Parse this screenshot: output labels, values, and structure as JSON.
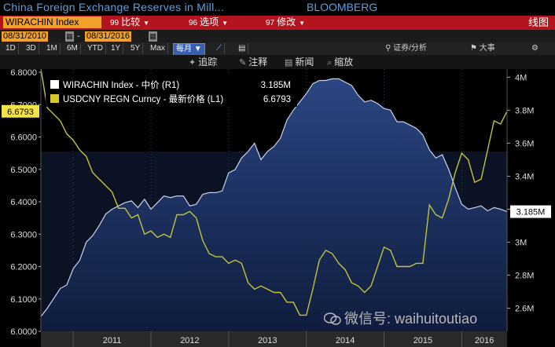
{
  "header": {
    "title": "China Foreign Exchange Reserves in Mill...",
    "source": "BLOOMBERG",
    "ticker": "WIRACHIN Index",
    "menu": [
      {
        "num": "99",
        "label": "比较"
      },
      {
        "num": "96",
        "label": "选项"
      },
      {
        "num": "97",
        "label": "修改"
      }
    ],
    "line_graph_label": "线图"
  },
  "dates": {
    "start": "08/31/2010",
    "end": "08/31/2016"
  },
  "ranges": [
    "1D",
    "3D",
    "1M",
    "6M",
    "YTD",
    "1Y",
    "5Y",
    "Max"
  ],
  "period": "每月",
  "toolbar2": [
    "证券/分析",
    "大事"
  ],
  "toolbar": [
    {
      "icon": "plus-minus-icon",
      "label": "追踪"
    },
    {
      "icon": "pencil-icon",
      "label": "注释"
    },
    {
      "icon": "news-icon",
      "label": "新闻"
    },
    {
      "icon": "zoom-icon",
      "label": "缩放"
    }
  ],
  "colors": {
    "reserves": "#1e3366",
    "reserves_line": "#c8d2ec",
    "usdcny": "#c4c23a",
    "accent": "#f0a12a"
  },
  "watermark": "微信号: waihuitoutiao",
  "chart_data": {
    "type": "line",
    "legend": [
      {
        "name": "WIRACHIN Index - 中价 (R1)",
        "value": "3.185M",
        "color": "#ffffff"
      },
      {
        "name": "USDCNY REGN Curncy - 最新价格 (L1)",
        "value": "6.6793",
        "color": "#d4c92a"
      }
    ],
    "x_labels": [
      "2011",
      "2012",
      "2013",
      "2014",
      "2015",
      "2016"
    ],
    "x_range": [
      "2010-08",
      "2016-08"
    ],
    "left_axis": {
      "ticks": [
        "6.0000",
        "6.1000",
        "6.2000",
        "6.3000",
        "6.4000",
        "6.5000",
        "6.6000",
        "6.7000",
        "6.8000"
      ],
      "range": [
        6.0,
        6.8
      ],
      "last_label": "6.6793"
    },
    "right_axis": {
      "ticks": [
        "2.6M",
        "2.8M",
        "3M",
        "3.2M",
        "3.4M",
        "3.6M",
        "3.8M",
        "4M"
      ],
      "range": [
        2.46,
        4.03
      ],
      "last_label": "3.185M"
    },
    "series": [
      {
        "name": "WIRACHIN Index",
        "axis": "right",
        "style": "area",
        "points": [
          [
            "2010-08",
            2.55
          ],
          [
            "2010-09",
            2.6
          ],
          [
            "2010-10",
            2.66
          ],
          [
            "2010-11",
            2.72
          ],
          [
            "2010-12",
            2.74
          ],
          [
            "2011-01",
            2.84
          ],
          [
            "2011-02",
            2.89
          ],
          [
            "2011-03",
            3.0
          ],
          [
            "2011-04",
            3.04
          ],
          [
            "2011-05",
            3.1
          ],
          [
            "2011-06",
            3.17
          ],
          [
            "2011-07",
            3.2
          ],
          [
            "2011-08",
            3.22
          ],
          [
            "2011-09",
            3.24
          ],
          [
            "2011-10",
            3.25
          ],
          [
            "2011-11",
            3.21
          ],
          [
            "2011-12",
            3.26
          ],
          [
            "2012-01",
            3.2
          ],
          [
            "2012-02",
            3.24
          ],
          [
            "2012-03",
            3.28
          ],
          [
            "2012-04",
            3.27
          ],
          [
            "2012-05",
            3.28
          ],
          [
            "2012-06",
            3.28
          ],
          [
            "2012-07",
            3.22
          ],
          [
            "2012-08",
            3.23
          ],
          [
            "2012-09",
            3.29
          ],
          [
            "2012-10",
            3.3
          ],
          [
            "2012-11",
            3.3
          ],
          [
            "2012-12",
            3.31
          ],
          [
            "2013-01",
            3.42
          ],
          [
            "2013-02",
            3.44
          ],
          [
            "2013-03",
            3.51
          ],
          [
            "2013-04",
            3.55
          ],
          [
            "2013-05",
            3.6
          ],
          [
            "2013-06",
            3.5
          ],
          [
            "2013-07",
            3.55
          ],
          [
            "2013-08",
            3.58
          ],
          [
            "2013-09",
            3.63
          ],
          [
            "2013-10",
            3.74
          ],
          [
            "2013-11",
            3.8
          ],
          [
            "2013-12",
            3.85
          ],
          [
            "2014-01",
            3.9
          ],
          [
            "2014-02",
            3.96
          ],
          [
            "2014-03",
            3.98
          ],
          [
            "2014-04",
            3.98
          ],
          [
            "2014-05",
            3.99
          ],
          [
            "2014-06",
            3.99
          ],
          [
            "2014-07",
            3.97
          ],
          [
            "2014-08",
            3.95
          ],
          [
            "2014-09",
            3.89
          ],
          [
            "2014-10",
            3.85
          ],
          [
            "2014-11",
            3.86
          ],
          [
            "2014-12",
            3.84
          ],
          [
            "2015-01",
            3.81
          ],
          [
            "2015-02",
            3.8
          ],
          [
            "2015-03",
            3.73
          ],
          [
            "2015-04",
            3.73
          ],
          [
            "2015-05",
            3.71
          ],
          [
            "2015-06",
            3.69
          ],
          [
            "2015-07",
            3.65
          ],
          [
            "2015-08",
            3.56
          ],
          [
            "2015-09",
            3.51
          ],
          [
            "2015-10",
            3.53
          ],
          [
            "2015-11",
            3.44
          ],
          [
            "2015-12",
            3.33
          ],
          [
            "2016-01",
            3.23
          ],
          [
            "2016-02",
            3.2
          ],
          [
            "2016-03",
            3.21
          ],
          [
            "2016-04",
            3.22
          ],
          [
            "2016-05",
            3.19
          ],
          [
            "2016-06",
            3.21
          ],
          [
            "2016-07",
            3.2
          ],
          [
            "2016-08",
            3.185
          ]
        ]
      },
      {
        "name": "USDCNY REGN Curncy",
        "axis": "left",
        "style": "line",
        "points": [
          [
            "2010-08",
            6.81
          ],
          [
            "2010-09",
            6.69
          ],
          [
            "2010-10",
            6.67
          ],
          [
            "2010-11",
            6.65
          ],
          [
            "2010-12",
            6.61
          ],
          [
            "2011-01",
            6.59
          ],
          [
            "2011-02",
            6.56
          ],
          [
            "2011-03",
            6.54
          ],
          [
            "2011-04",
            6.49
          ],
          [
            "2011-05",
            6.47
          ],
          [
            "2011-06",
            6.45
          ],
          [
            "2011-07",
            6.43
          ],
          [
            "2011-08",
            6.38
          ],
          [
            "2011-09",
            6.38
          ],
          [
            "2011-10",
            6.35
          ],
          [
            "2011-11",
            6.36
          ],
          [
            "2011-12",
            6.3
          ],
          [
            "2012-01",
            6.31
          ],
          [
            "2012-02",
            6.29
          ],
          [
            "2012-03",
            6.3
          ],
          [
            "2012-04",
            6.29
          ],
          [
            "2012-05",
            6.36
          ],
          [
            "2012-06",
            6.36
          ],
          [
            "2012-07",
            6.37
          ],
          [
            "2012-08",
            6.35
          ],
          [
            "2012-09",
            6.28
          ],
          [
            "2012-10",
            6.24
          ],
          [
            "2012-11",
            6.23
          ],
          [
            "2012-12",
            6.23
          ],
          [
            "2013-01",
            6.21
          ],
          [
            "2013-02",
            6.22
          ],
          [
            "2013-03",
            6.21
          ],
          [
            "2013-04",
            6.15
          ],
          [
            "2013-05",
            6.13
          ],
          [
            "2013-06",
            6.14
          ],
          [
            "2013-07",
            6.13
          ],
          [
            "2013-08",
            6.12
          ],
          [
            "2013-09",
            6.12
          ],
          [
            "2013-10",
            6.09
          ],
          [
            "2013-11",
            6.09
          ],
          [
            "2013-12",
            6.05
          ],
          [
            "2014-01",
            6.05
          ],
          [
            "2014-02",
            6.13
          ],
          [
            "2014-03",
            6.22
          ],
          [
            "2014-04",
            6.25
          ],
          [
            "2014-05",
            6.24
          ],
          [
            "2014-06",
            6.21
          ],
          [
            "2014-07",
            6.19
          ],
          [
            "2014-08",
            6.15
          ],
          [
            "2014-09",
            6.14
          ],
          [
            "2014-10",
            6.12
          ],
          [
            "2014-11",
            6.14
          ],
          [
            "2014-12",
            6.2
          ],
          [
            "2015-01",
            6.26
          ],
          [
            "2015-02",
            6.25
          ],
          [
            "2015-03",
            6.2
          ],
          [
            "2015-04",
            6.2
          ],
          [
            "2015-05",
            6.2
          ],
          [
            "2015-06",
            6.21
          ],
          [
            "2015-07",
            6.21
          ],
          [
            "2015-08",
            6.39
          ],
          [
            "2015-09",
            6.36
          ],
          [
            "2015-10",
            6.35
          ],
          [
            "2015-11",
            6.41
          ],
          [
            "2015-12",
            6.49
          ],
          [
            "2016-01",
            6.55
          ],
          [
            "2016-02",
            6.53
          ],
          [
            "2016-03",
            6.46
          ],
          [
            "2016-04",
            6.47
          ],
          [
            "2016-05",
            6.56
          ],
          [
            "2016-06",
            6.65
          ],
          [
            "2016-07",
            6.64
          ],
          [
            "2016-08",
            6.6793
          ]
        ]
      }
    ]
  }
}
